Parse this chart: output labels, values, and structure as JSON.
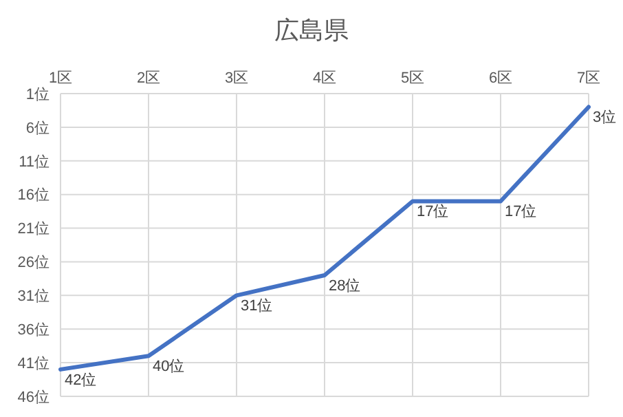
{
  "chart_data": {
    "type": "line",
    "title": "広島県",
    "categories": [
      "1区",
      "2区",
      "3区",
      "4区",
      "5区",
      "6区",
      "7区"
    ],
    "series": [
      {
        "color": "#4472c4",
        "values": [
          42,
          40,
          31,
          28,
          17,
          17,
          3
        ],
        "value_labels": [
          "42位",
          "40位",
          "31位",
          "28位",
          "17位",
          "17位",
          "3位"
        ]
      }
    ],
    "ylim": [
      46,
      1
    ],
    "yticks": [
      {
        "value": 1,
        "label": "1位"
      },
      {
        "value": 6,
        "label": "6位"
      },
      {
        "value": 11,
        "label": "11位"
      },
      {
        "value": 16,
        "label": "16位"
      },
      {
        "value": 21,
        "label": "21位"
      },
      {
        "value": 26,
        "label": "26位"
      },
      {
        "value": 31,
        "label": "31位"
      },
      {
        "value": 36,
        "label": "36位"
      },
      {
        "value": 41,
        "label": "41位"
      },
      {
        "value": 46,
        "label": "46位"
      }
    ],
    "grid": true,
    "marker": "none",
    "line_style": "solid",
    "legend": false
  }
}
